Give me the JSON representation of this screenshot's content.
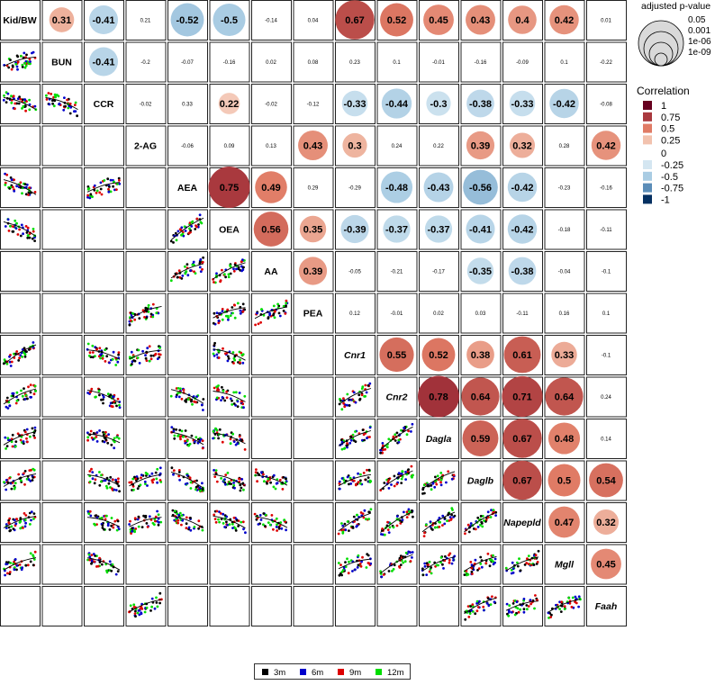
{
  "chart_data": {
    "type": "correlation-matrix",
    "variables": [
      "Kid/BW",
      "BUN",
      "CCR",
      "2-AG",
      "AEA",
      "OEA",
      "AA",
      "PEA",
      "Cnr1",
      "Cnr2",
      "Dagla",
      "Daglb",
      "Napepld",
      "Mgll",
      "Faah"
    ],
    "italic_from_index": 8,
    "correlations": [
      [
        1,
        0.31,
        -0.41,
        0.21,
        -0.52,
        -0.5,
        -0.14,
        0.04,
        0.67,
        0.52,
        0.45,
        0.43,
        0.4,
        0.42,
        0.01
      ],
      [
        0.31,
        1,
        -0.41,
        -0.2,
        -0.07,
        -0.16,
        0.02,
        0.08,
        0.23,
        0.1,
        -0.01,
        -0.16,
        -0.09,
        0.1,
        -0.22
      ],
      [
        -0.41,
        -0.41,
        1,
        -0.02,
        0.33,
        0.22,
        -0.02,
        -0.12,
        -0.33,
        -0.44,
        -0.3,
        -0.38,
        -0.33,
        -0.42,
        -0.08
      ],
      [
        0.21,
        -0.2,
        -0.02,
        1,
        -0.06,
        0.09,
        0.13,
        0.43,
        0.3,
        0.24,
        0.22,
        0.39,
        0.32,
        0.28,
        0.42
      ],
      [
        -0.52,
        -0.07,
        0.33,
        -0.06,
        1,
        0.75,
        0.49,
        0.29,
        -0.29,
        -0.48,
        -0.43,
        -0.56,
        -0.42,
        -0.23,
        -0.16
      ],
      [
        -0.5,
        -0.16,
        0.22,
        0.09,
        0.75,
        1,
        0.56,
        0.35,
        -0.39,
        -0.37,
        -0.37,
        -0.41,
        -0.42,
        -0.18,
        -0.11
      ],
      [
        -0.14,
        0.02,
        -0.02,
        0.13,
        0.49,
        0.56,
        1,
        0.39,
        -0.05,
        -0.21,
        -0.17,
        -0.35,
        -0.38,
        -0.04,
        -0.1
      ],
      [
        0.04,
        0.08,
        -0.12,
        0.43,
        0.29,
        0.35,
        0.39,
        1,
        0.12,
        -0.01,
        0.02,
        0.03,
        -0.11,
        0.16,
        0.1
      ],
      [
        0.67,
        0.23,
        -0.33,
        0.3,
        -0.29,
        -0.39,
        -0.05,
        0.12,
        1,
        0.55,
        0.52,
        0.38,
        0.61,
        0.33,
        -0.1
      ],
      [
        0.52,
        0.1,
        -0.44,
        0.24,
        -0.48,
        -0.37,
        -0.21,
        -0.01,
        0.55,
        1,
        0.78,
        0.64,
        0.71,
        0.64,
        0.24
      ],
      [
        0.45,
        -0.01,
        -0.3,
        0.22,
        -0.43,
        -0.37,
        -0.17,
        0.02,
        0.52,
        0.78,
        1,
        0.59,
        0.67,
        0.48,
        0.14
      ],
      [
        0.43,
        -0.16,
        -0.38,
        0.39,
        -0.56,
        -0.41,
        -0.35,
        0.03,
        0.38,
        0.64,
        0.59,
        1,
        0.67,
        0.5,
        0.54
      ],
      [
        0.4,
        -0.09,
        -0.33,
        0.32,
        -0.42,
        -0.42,
        -0.38,
        -0.11,
        0.61,
        0.71,
        0.67,
        0.67,
        1,
        0.47,
        0.32
      ],
      [
        0.42,
        0.1,
        -0.42,
        0.28,
        -0.23,
        -0.18,
        -0.04,
        0.16,
        0.33,
        0.64,
        0.48,
        0.5,
        0.47,
        1,
        0.45
      ],
      [
        0.01,
        -0.22,
        -0.08,
        0.42,
        -0.16,
        -0.11,
        -0.1,
        0.1,
        -0.1,
        0.24,
        0.14,
        0.54,
        0.32,
        0.45,
        1
      ]
    ],
    "significant_upper_cells": [
      [
        0,
        1
      ],
      [
        0,
        2
      ],
      [
        0,
        4
      ],
      [
        0,
        5
      ],
      [
        0,
        8
      ],
      [
        0,
        9
      ],
      [
        0,
        10
      ],
      [
        0,
        11
      ],
      [
        0,
        12
      ],
      [
        0,
        13
      ],
      [
        1,
        2
      ],
      [
        2,
        5
      ],
      [
        2,
        8
      ],
      [
        2,
        9
      ],
      [
        2,
        10
      ],
      [
        2,
        11
      ],
      [
        2,
        12
      ],
      [
        2,
        13
      ],
      [
        3,
        7
      ],
      [
        3,
        8
      ],
      [
        3,
        11
      ],
      [
        3,
        12
      ],
      [
        3,
        14
      ],
      [
        4,
        5
      ],
      [
        4,
        6
      ],
      [
        4,
        9
      ],
      [
        4,
        10
      ],
      [
        4,
        11
      ],
      [
        4,
        12
      ],
      [
        5,
        6
      ],
      [
        5,
        7
      ],
      [
        5,
        8
      ],
      [
        5,
        9
      ],
      [
        5,
        10
      ],
      [
        5,
        11
      ],
      [
        5,
        12
      ],
      [
        6,
        7
      ],
      [
        6,
        11
      ],
      [
        6,
        12
      ],
      [
        8,
        9
      ],
      [
        8,
        10
      ],
      [
        8,
        11
      ],
      [
        8,
        12
      ],
      [
        8,
        13
      ],
      [
        9,
        10
      ],
      [
        9,
        11
      ],
      [
        9,
        12
      ],
      [
        9,
        13
      ],
      [
        10,
        11
      ],
      [
        10,
        12
      ],
      [
        10,
        13
      ],
      [
        11,
        12
      ],
      [
        11,
        13
      ],
      [
        11,
        14
      ],
      [
        12,
        13
      ],
      [
        12,
        14
      ],
      [
        13,
        14
      ]
    ],
    "scatter_lower_cells": [
      [
        1,
        0
      ],
      [
        2,
        0
      ],
      [
        2,
        1
      ],
      [
        4,
        0
      ],
      [
        4,
        2
      ],
      [
        5,
        0
      ],
      [
        5,
        4
      ],
      [
        6,
        4
      ],
      [
        6,
        5
      ],
      [
        7,
        3
      ],
      [
        7,
        5
      ],
      [
        7,
        6
      ],
      [
        8,
        0
      ],
      [
        8,
        2
      ],
      [
        8,
        3
      ],
      [
        8,
        5
      ],
      [
        9,
        0
      ],
      [
        9,
        2
      ],
      [
        9,
        4
      ],
      [
        9,
        5
      ],
      [
        9,
        8
      ],
      [
        10,
        0
      ],
      [
        10,
        2
      ],
      [
        10,
        4
      ],
      [
        10,
        5
      ],
      [
        10,
        8
      ],
      [
        10,
        9
      ],
      [
        11,
        0
      ],
      [
        11,
        2
      ],
      [
        11,
        3
      ],
      [
        11,
        4
      ],
      [
        11,
        5
      ],
      [
        11,
        6
      ],
      [
        11,
        8
      ],
      [
        11,
        9
      ],
      [
        11,
        10
      ],
      [
        12,
        0
      ],
      [
        12,
        2
      ],
      [
        12,
        3
      ],
      [
        12,
        4
      ],
      [
        12,
        5
      ],
      [
        12,
        6
      ],
      [
        12,
        8
      ],
      [
        12,
        9
      ],
      [
        12,
        10
      ],
      [
        12,
        11
      ],
      [
        13,
        0
      ],
      [
        13,
        2
      ],
      [
        13,
        8
      ],
      [
        13,
        9
      ],
      [
        13,
        10
      ],
      [
        13,
        11
      ],
      [
        13,
        12
      ],
      [
        14,
        3
      ],
      [
        14,
        11
      ],
      [
        14,
        12
      ],
      [
        14,
        13
      ]
    ],
    "groups": [
      {
        "name": "3m",
        "color": "#000000"
      },
      {
        "name": "6m",
        "color": "#0000cc"
      },
      {
        "name": "9m",
        "color": "#dd0000"
      },
      {
        "name": "12m",
        "color": "#00dd00"
      }
    ],
    "pvalue_legend": {
      "title": "adjusted p-value",
      "levels": [
        "0.05",
        "0.001",
        "1e-06",
        "1e-09"
      ]
    },
    "correlation_legend": {
      "title": "Correlation",
      "entries": [
        {
          "label": "1",
          "color": "#67001f"
        },
        {
          "label": "0.75",
          "color": "#a9393e"
        },
        {
          "label": "0.5",
          "color": "#e07b65"
        },
        {
          "label": "0.25",
          "color": "#f2c2ae"
        },
        {
          "label": "0",
          "color": "#ffffff"
        },
        {
          "label": "-0.25",
          "color": "#d4e6f1"
        },
        {
          "label": "-0.5",
          "color": "#a9cce3"
        },
        {
          "label": "-0.75",
          "color": "#5b8db8"
        },
        {
          "label": "-1",
          "color": "#053061"
        }
      ]
    }
  }
}
